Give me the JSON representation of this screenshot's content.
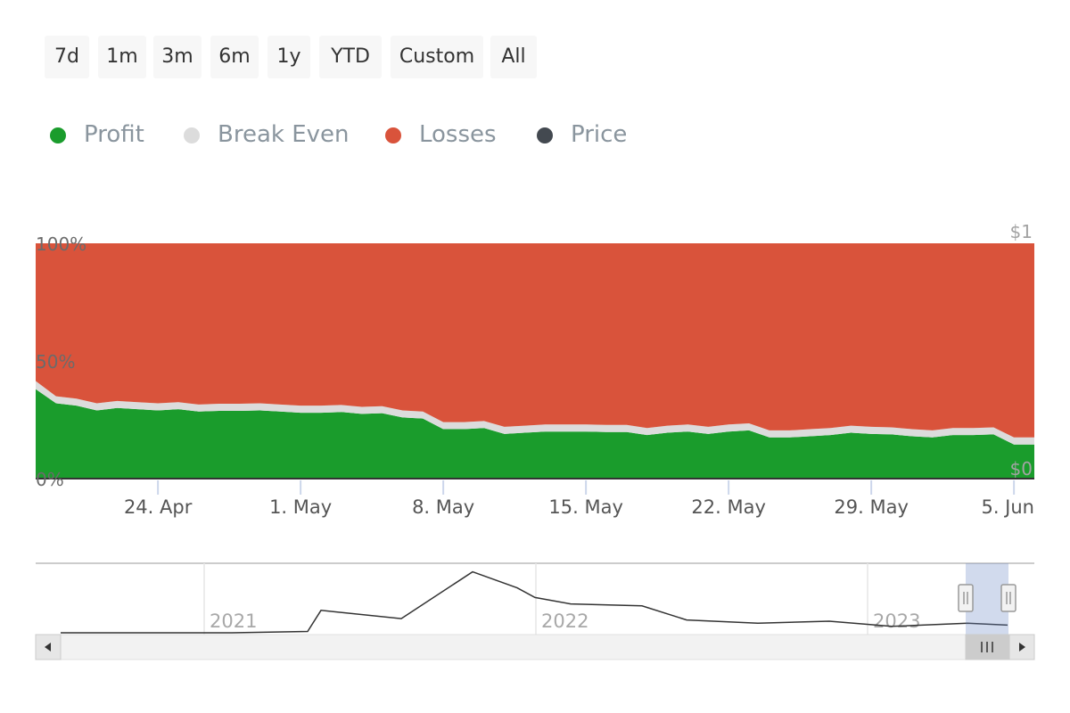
{
  "range_selector": {
    "buttons": [
      {
        "label": "7d"
      },
      {
        "label": "1m"
      },
      {
        "label": "3m"
      },
      {
        "label": "6m"
      },
      {
        "label": "1y"
      },
      {
        "label": "YTD"
      },
      {
        "label": "Custom"
      },
      {
        "label": "All"
      }
    ]
  },
  "legend": {
    "items": [
      {
        "label": "Profit",
        "color": "#1a9c2c"
      },
      {
        "label": "Break Even",
        "color": "#dcdcdc"
      },
      {
        "label": "Losses",
        "color": "#d9533b"
      },
      {
        "label": "Price",
        "color": "#434950"
      }
    ]
  },
  "navigator": {
    "year_labels": [
      "2021",
      "2022",
      "2023"
    ]
  },
  "chart_data": {
    "type": "area",
    "stacked": true,
    "percent": true,
    "title": "",
    "xlabel": "",
    "ylabel": "",
    "x_ticks": [
      "24. Apr",
      "1. May",
      "8. May",
      "15. May",
      "22. May",
      "29. May",
      "5. Jun"
    ],
    "y_ticks_left": [
      "0%",
      "50%",
      "100%"
    ],
    "y_ticks_right": [
      "$0",
      "$1"
    ],
    "ylim": [
      0,
      100
    ],
    "grid": false,
    "legend_position": "top-left",
    "x": [
      "18. Apr",
      "19. Apr",
      "20. Apr",
      "21. Apr",
      "22. Apr",
      "23. Apr",
      "24. Apr",
      "25. Apr",
      "26. Apr",
      "27. Apr",
      "28. Apr",
      "29. Apr",
      "30. Apr",
      "1. May",
      "2. May",
      "3. May",
      "4. May",
      "5. May",
      "6. May",
      "7. May",
      "8. May",
      "9. May",
      "10. May",
      "11. May",
      "12. May",
      "13. May",
      "14. May",
      "15. May",
      "16. May",
      "17. May",
      "18. May",
      "19. May",
      "20. May",
      "21. May",
      "22. May",
      "23. May",
      "24. May",
      "25. May",
      "26. May",
      "27. May",
      "28. May",
      "29. May",
      "30. May",
      "31. May",
      "1. Jun",
      "2. Jun",
      "3. Jun",
      "4. Jun",
      "5. Jun",
      "6. Jun"
    ],
    "series": [
      {
        "name": "Profit",
        "color": "#1a9c2c",
        "values": [
          38,
          32,
          31,
          29,
          30,
          29.5,
          29,
          29.5,
          28.5,
          28.8,
          28.8,
          29,
          28.5,
          28,
          28,
          28.3,
          27.5,
          27.8,
          26,
          25.5,
          21,
          21,
          21.5,
          19,
          19.5,
          20,
          20,
          20,
          19.8,
          19.8,
          18.5,
          19.5,
          20,
          19,
          20,
          20.5,
          17.5,
          17.5,
          18,
          18.5,
          19.5,
          19,
          18.8,
          18,
          17.5,
          18.5,
          18.5,
          18.8,
          14.5,
          14.5
        ]
      },
      {
        "name": "Break Even",
        "color": "#dcdcdc",
        "values": [
          3.5,
          3,
          3,
          3,
          3,
          3,
          3,
          3,
          3,
          3,
          3,
          3,
          3,
          3,
          3,
          3,
          3,
          3,
          3,
          3,
          3,
          3,
          3,
          3,
          3,
          3,
          3,
          3,
          3,
          3,
          3,
          3,
          3,
          3,
          3,
          3,
          3,
          3,
          3,
          3,
          3,
          3,
          3,
          3,
          3,
          3,
          3,
          3,
          3,
          3
        ]
      },
      {
        "name": "Losses",
        "color": "#d9533b",
        "values": [
          58.5,
          65,
          66,
          68,
          67,
          67.5,
          68,
          67.5,
          68.5,
          68.2,
          68.2,
          68,
          68.5,
          69,
          69,
          68.7,
          69.5,
          69.2,
          71,
          71.5,
          76,
          76,
          75.5,
          78,
          77.5,
          77,
          77,
          77,
          77.2,
          77.2,
          78.5,
          77.5,
          77,
          78,
          77,
          76.5,
          79.5,
          79.5,
          79,
          78.5,
          77.5,
          78,
          78.2,
          79,
          79.5,
          78.5,
          78.5,
          78.2,
          82.5,
          82.5
        ]
      }
    ],
    "navigator_price": {
      "name": "Price",
      "x": [
        "Jul 2020",
        "Oct 2020",
        "Jan 2021",
        "Apr 2021",
        "Jul 2021",
        "Oct 2021",
        "Nov 2021",
        "Dec 2021",
        "Jan 2022",
        "Feb 2022",
        "Mar 2022",
        "May 2022",
        "Aug 2022",
        "Nov 2022",
        "Feb 2023",
        "May 2023",
        "Jun 2023"
      ],
      "values": [
        0,
        0,
        0,
        0.02,
        0.35,
        0.22,
        0.95,
        0.7,
        0.55,
        0.45,
        0.42,
        0.2,
        0.15,
        0.18,
        0.1,
        0.15,
        0.12
      ]
    }
  }
}
